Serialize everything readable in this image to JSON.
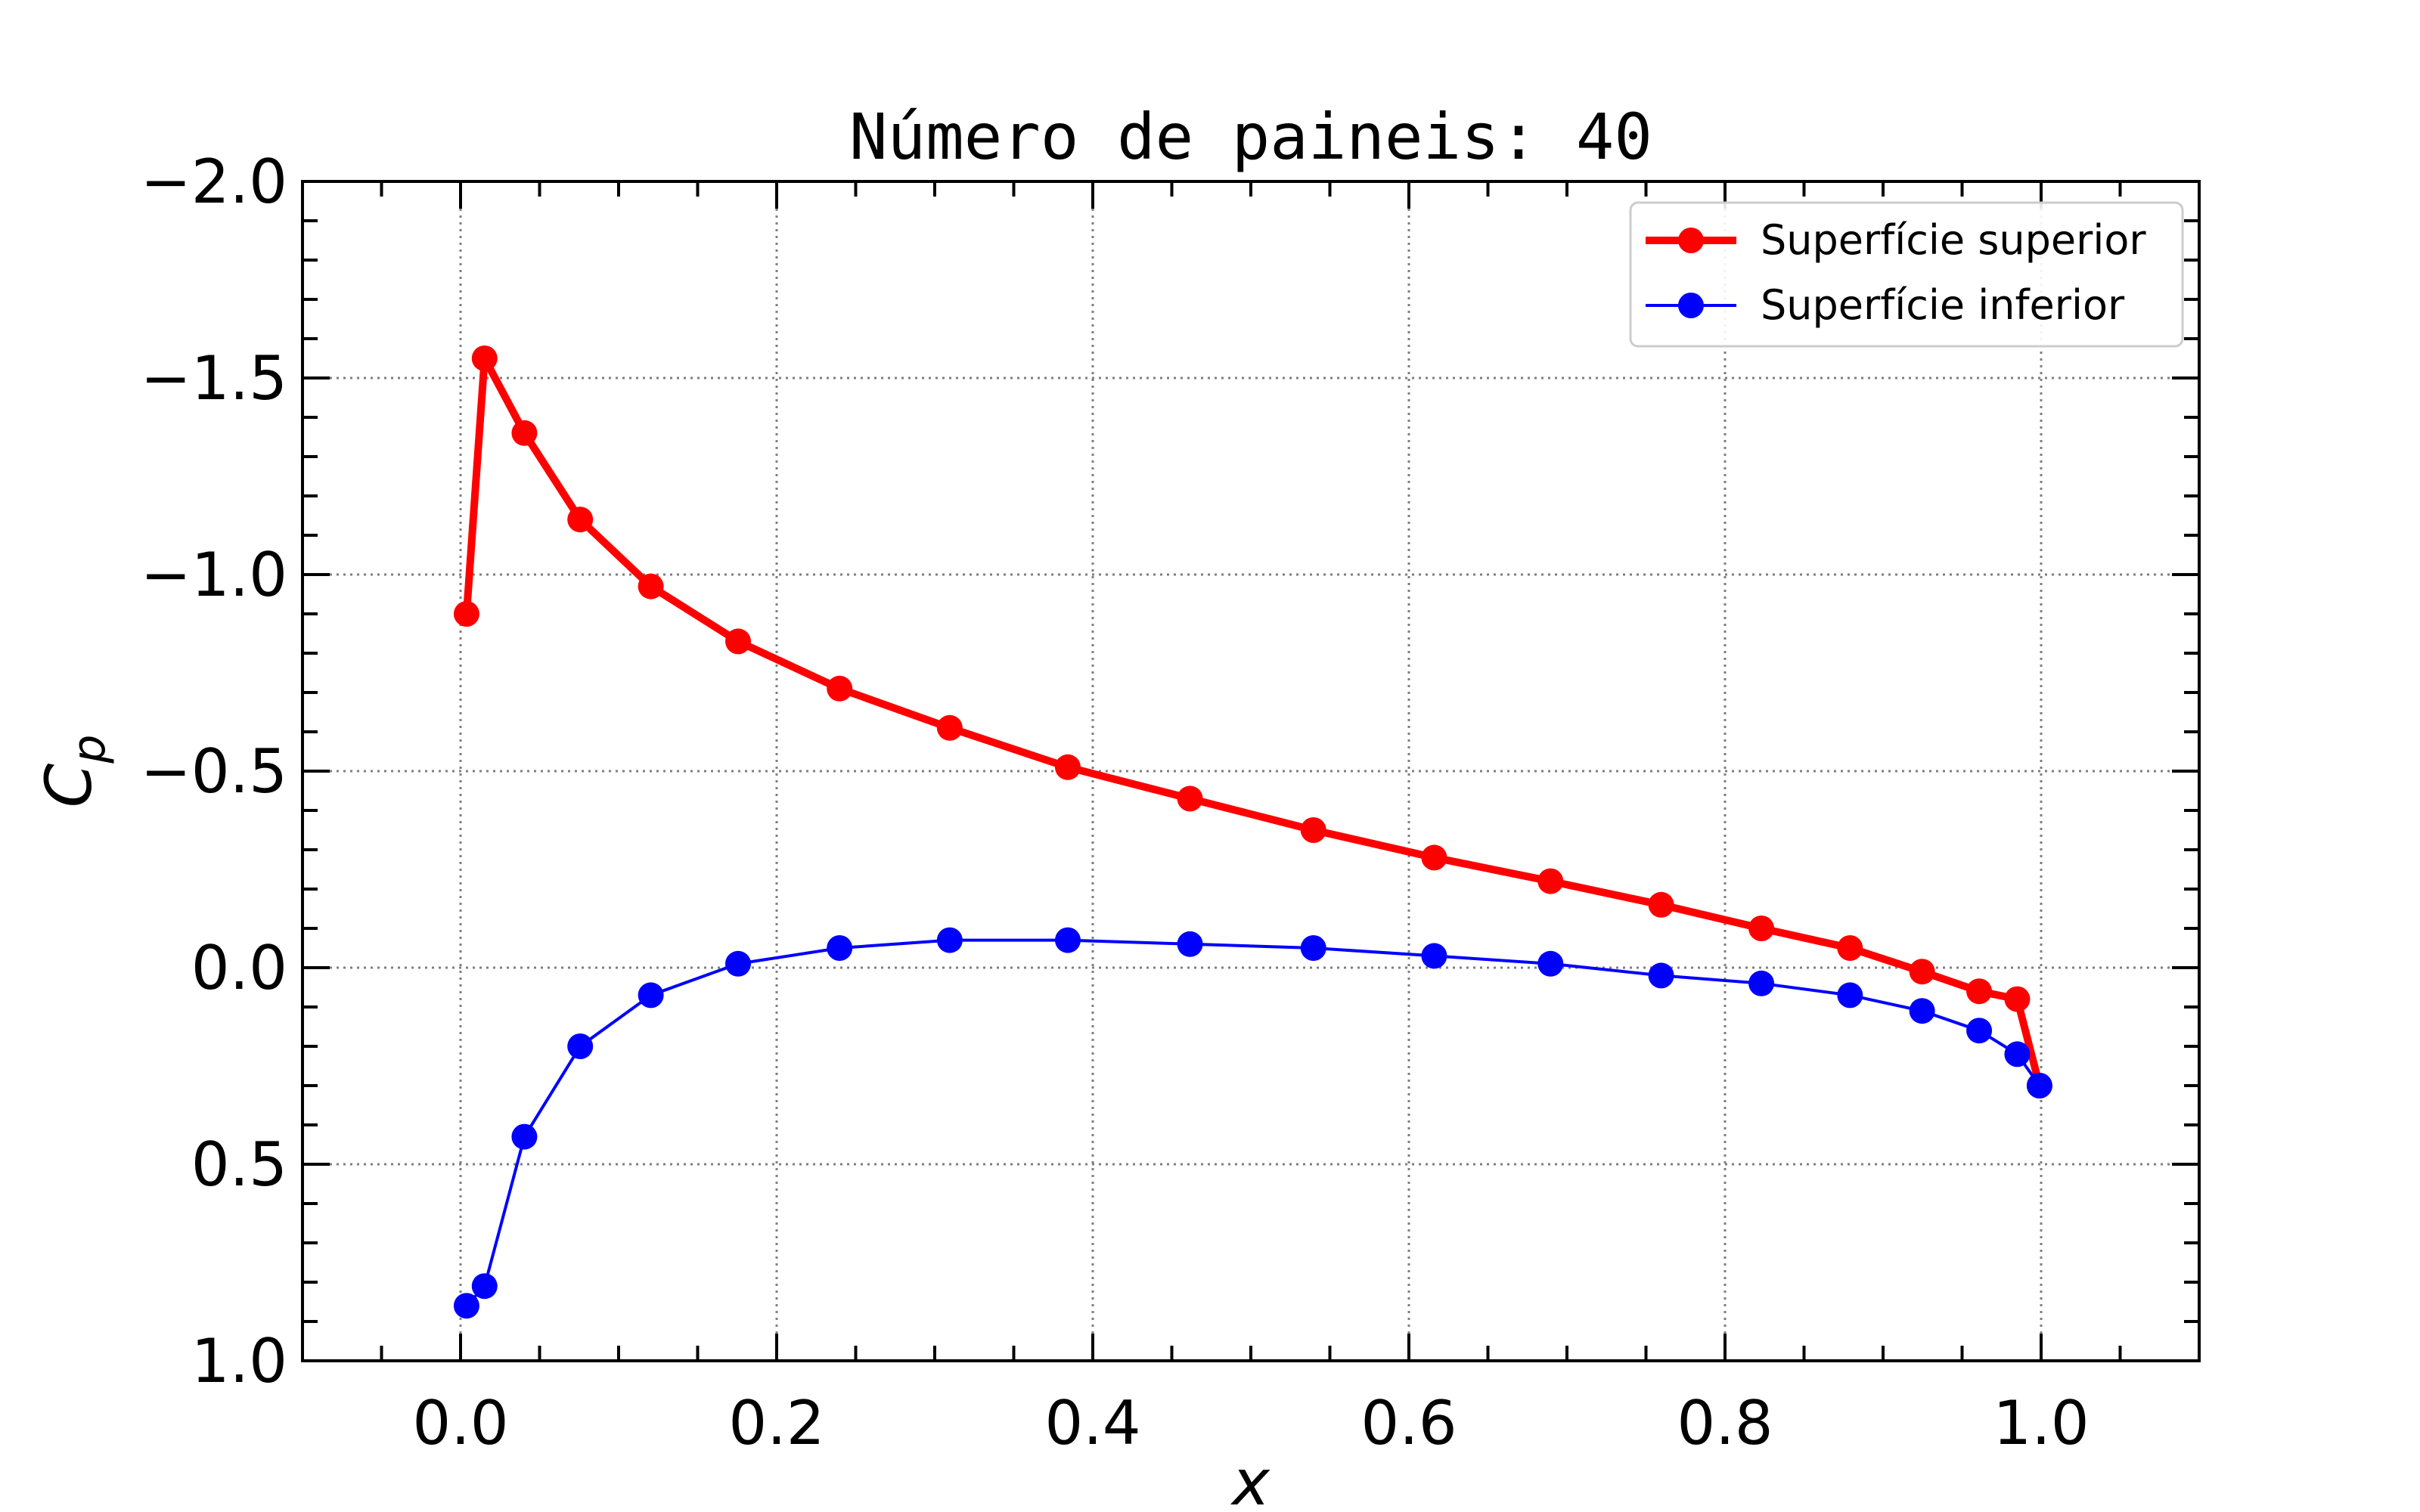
{
  "chart_data": {
    "type": "line",
    "title": "Número de paineis: 40",
    "xlabel": "x",
    "ylabel": "C_p",
    "xlim": [
      -0.1,
      1.1
    ],
    "ylim": [
      1.0,
      -2.0
    ],
    "y_inverted": true,
    "xticks": [
      "0.0",
      "0.2",
      "0.4",
      "0.6",
      "0.8",
      "1.0"
    ],
    "yticks": [
      "−2.0",
      "−1.5",
      "−1.0",
      "−0.5",
      "0.0",
      "0.5",
      "1.0"
    ],
    "grid": true,
    "legend_position": "top-right",
    "series": [
      {
        "name": "Superfície superior",
        "color": "#ff0000",
        "line_width": "thick",
        "x": [
          0.0038,
          0.0152,
          0.0404,
          0.0757,
          0.1204,
          0.1756,
          0.2398,
          0.3095,
          0.3842,
          0.4615,
          0.5396,
          0.616,
          0.6896,
          0.7596,
          0.823,
          0.8791,
          0.9247,
          0.9608,
          0.9849,
          0.999
        ],
        "y": [
          -0.9,
          -1.55,
          -1.36,
          -1.14,
          -0.97,
          -0.83,
          -0.71,
          -0.61,
          -0.51,
          -0.43,
          -0.35,
          -0.28,
          -0.22,
          -0.16,
          -0.1,
          -0.05,
          0.01,
          0.06,
          0.08,
          0.3
        ]
      },
      {
        "name": "Superfície inferior",
        "color": "#0000ff",
        "line_width": "thin",
        "x": [
          0.0038,
          0.0152,
          0.0404,
          0.0757,
          0.1204,
          0.1756,
          0.2398,
          0.3095,
          0.3842,
          0.4615,
          0.5396,
          0.616,
          0.6896,
          0.7596,
          0.823,
          0.8791,
          0.9247,
          0.9608,
          0.9849,
          0.999
        ],
        "y": [
          0.86,
          0.81,
          0.43,
          0.2,
          0.07,
          -0.01,
          -0.05,
          -0.07,
          -0.07,
          -0.06,
          -0.05,
          -0.03,
          -0.01,
          0.02,
          0.04,
          0.07,
          0.11,
          0.16,
          0.22,
          0.3
        ]
      }
    ]
  }
}
